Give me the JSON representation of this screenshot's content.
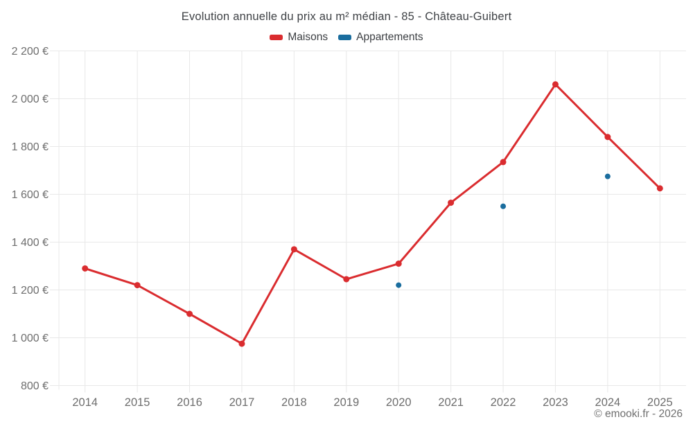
{
  "colors": {
    "grid": "#e8e8e8",
    "axis_text": "#6d6d6d",
    "maisons_red": "#da2c2f",
    "appartements_blue": "#1a6d9e"
  },
  "chart_data": {
    "type": "line",
    "title": "Evolution annuelle du prix au m² médian - 85 - Château-Guibert",
    "categories": [
      "2014",
      "2015",
      "2016",
      "2017",
      "2018",
      "2019",
      "2020",
      "2021",
      "2022",
      "2023",
      "2024",
      "2025"
    ],
    "series": [
      {
        "name": "Maisons",
        "type": "line",
        "color": "#da2c2f",
        "values": [
          1290,
          1220,
          1100,
          975,
          1370,
          1245,
          1310,
          1565,
          1735,
          2060,
          1840,
          1625
        ]
      },
      {
        "name": "Appartements",
        "type": "scatter",
        "color": "#1a6d9e",
        "values": [
          null,
          null,
          null,
          null,
          null,
          null,
          1220,
          null,
          1550,
          null,
          1675,
          null
        ]
      }
    ],
    "ylim": [
      800,
      2200
    ],
    "ytick_step": 200,
    "ytick_labels": [
      "800 €",
      "1 000 €",
      "1 200 €",
      "1 400 €",
      "1 600 €",
      "1 800 €",
      "2 000 €",
      "2 200 €"
    ],
    "y_unit": "€",
    "grid": true,
    "legend_position": "top",
    "footer": "© emooki.fr - 2026"
  }
}
